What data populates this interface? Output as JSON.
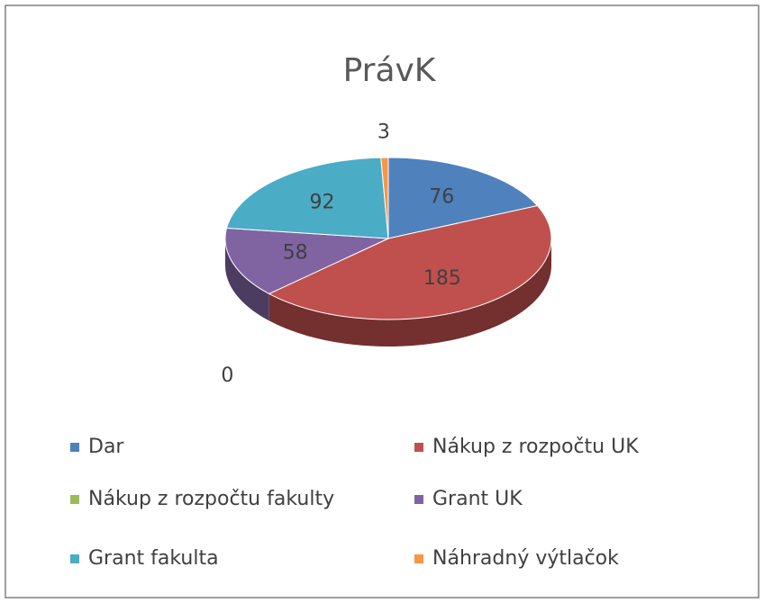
{
  "chart_data": {
    "type": "pie",
    "title": "PrávK",
    "categories": [
      "Dar",
      "Nákup z rozpočtu UK",
      "Nákup z rozpočtu fakulty",
      "Grant UK",
      "Grant  fakulta",
      "Náhradný výtlačok"
    ],
    "values": [
      76,
      185,
      0,
      58,
      92,
      3
    ],
    "colors": [
      "#4f81bd",
      "#c0504d",
      "#9bbb59",
      "#8064a2",
      "#4bacc6",
      "#f79646"
    ],
    "legend": "bottom"
  }
}
